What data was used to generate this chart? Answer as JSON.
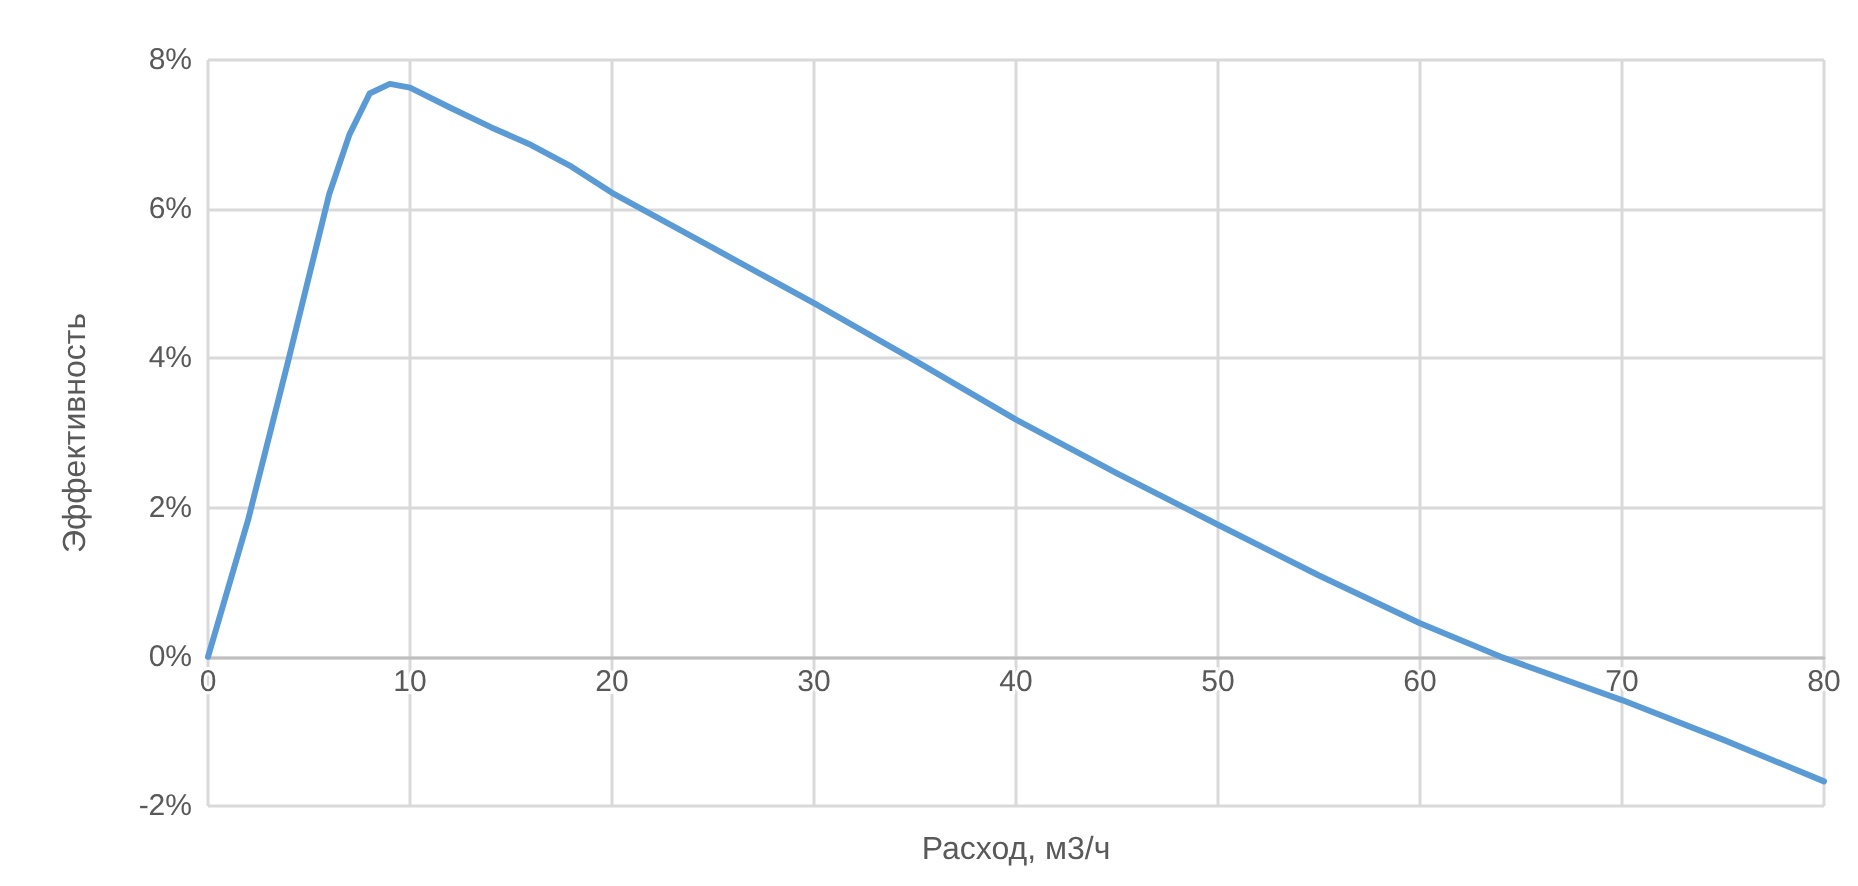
{
  "chart_data": {
    "type": "line",
    "xlabel": "Расход, м3/ч",
    "ylabel": "Эффективность",
    "x": [
      0,
      2,
      4,
      6,
      7,
      8,
      9,
      10,
      12,
      14,
      16,
      18,
      20,
      25,
      30,
      35,
      40,
      45,
      50,
      55,
      60,
      64,
      70,
      75,
      80
    ],
    "series": [
      {
        "color": "#5b9bd5",
        "values": [
          0,
          1.85,
          4.0,
          6.2,
          7.0,
          7.55,
          7.68,
          7.63,
          7.36,
          7.1,
          6.86,
          6.57,
          6.22,
          5.48,
          4.74,
          3.97,
          3.18,
          2.46,
          1.77,
          1.09,
          0.45,
          0,
          -0.58,
          -1.11,
          -1.67
        ]
      }
    ],
    "xlim": [
      0,
      80
    ],
    "xticks": [
      0,
      10,
      20,
      30,
      40,
      50,
      60,
      70,
      80
    ],
    "ylim": [
      -2,
      8
    ],
    "yticks": [
      {
        "value": -2,
        "label": "-2%"
      },
      {
        "value": 0,
        "label": "0%"
      },
      {
        "value": 2,
        "label": "2%"
      },
      {
        "value": 4,
        "label": "4%"
      },
      {
        "value": 6,
        "label": "6%"
      },
      {
        "value": 8,
        "label": "8%"
      }
    ],
    "grid": true,
    "marker": "none",
    "line_style": "solid"
  }
}
